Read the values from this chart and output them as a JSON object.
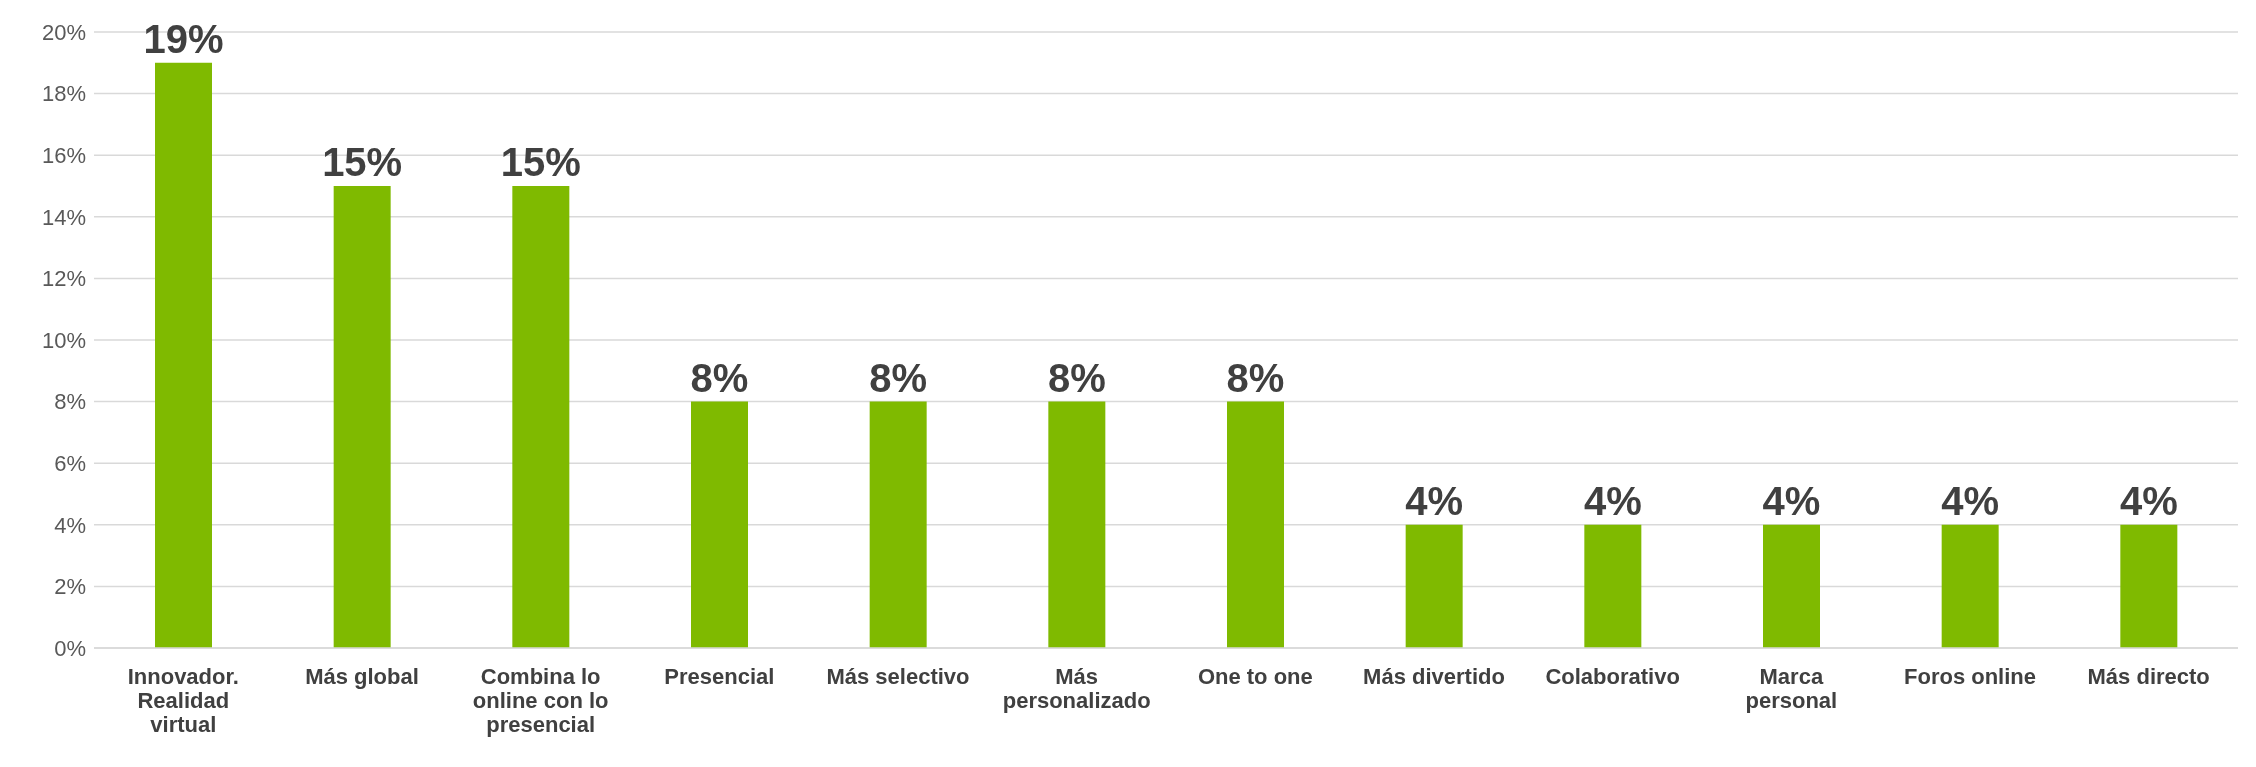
{
  "chart_data": {
    "type": "bar",
    "categories": [
      "Innovador. Realidad virtual",
      "Más global",
      "Combina lo online con lo presencial",
      "Presencial",
      "Más selectivo",
      "Más personalizado",
      "One to one",
      "Más divertido",
      "Colaborativo",
      "Marca personal",
      "Foros online",
      "Más directo"
    ],
    "values": [
      19,
      15,
      15,
      8,
      8,
      8,
      8,
      4,
      4,
      4,
      4,
      4
    ],
    "value_labels": [
      "19%",
      "15%",
      "15%",
      "8%",
      "8%",
      "8%",
      "8%",
      "4%",
      "4%",
      "4%",
      "4%",
      "4%"
    ],
    "color": "#7fba00",
    "ylim": [
      0,
      20
    ],
    "yticks": [
      {
        "value": 0,
        "label": "0%"
      },
      {
        "value": 2,
        "label": "2%"
      },
      {
        "value": 4,
        "label": "4%"
      },
      {
        "value": 6,
        "label": "6%"
      },
      {
        "value": 8,
        "label": "8%"
      },
      {
        "value": 10,
        "label": "10%"
      },
      {
        "value": 12,
        "label": "12%"
      },
      {
        "value": 14,
        "label": "14%"
      },
      {
        "value": 16,
        "label": "16%"
      },
      {
        "value": 18,
        "label": "18%"
      },
      {
        "value": 20,
        "label": "20%"
      }
    ],
    "grid": "y",
    "legend": false
  }
}
